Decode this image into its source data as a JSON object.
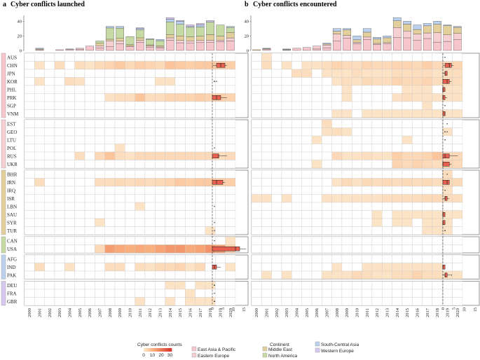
{
  "chart_data": {
    "type": "heatmap",
    "panels": [
      {
        "id": "a",
        "label": "a",
        "title": "Cyber conflicts launched"
      },
      {
        "id": "b",
        "label": "b",
        "title": "Cyber conflicts encountered"
      }
    ],
    "years": [
      "2000",
      "2001",
      "2002",
      "2003",
      "2004",
      "2005",
      "2006",
      "2007",
      "2008",
      "2009",
      "2010",
      "2011",
      "2012",
      "2013",
      "2014",
      "2015",
      "2016",
      "2017",
      "2018",
      "2019",
      "2020"
    ],
    "countries": [
      "AUS",
      "CHN",
      "JPN",
      "KOR",
      "PHL",
      "PRK",
      "SGP",
      "VNM",
      "EST",
      "GEO",
      "LTU",
      "POL",
      "RUS",
      "UKR",
      "BHR",
      "IRN",
      "IRQ",
      "ISR",
      "LBN",
      "SAU",
      "SYR",
      "TUR",
      "CAN",
      "USA",
      "AFG",
      "IND",
      "PAK",
      "DEU",
      "FRA",
      "GBR"
    ],
    "continent_of_country": [
      "East Asia & Pacific",
      "East Asia & Pacific",
      "East Asia & Pacific",
      "East Asia & Pacific",
      "East Asia & Pacific",
      "East Asia & Pacific",
      "East Asia & Pacific",
      "East Asia & Pacific",
      "Eastern Europe",
      "Eastern Europe",
      "Eastern Europe",
      "Eastern Europe",
      "Eastern Europe",
      "Eastern Europe",
      "Middle East",
      "Middle East",
      "Middle East",
      "Middle East",
      "Middle East",
      "Middle East",
      "Middle East",
      "Middle East",
      "North America",
      "North America",
      "South-Central Asia",
      "South-Central Asia",
      "South-Central Asia",
      "Western Europe",
      "Western Europe",
      "Western Europe"
    ],
    "continents": [
      {
        "name": "East Asia & Pacific",
        "color": "#f7c6cc"
      },
      {
        "name": "Eastern Europe",
        "color": "#f6cfd3"
      },
      {
        "name": "Middle East",
        "color": "#e3cf9c"
      },
      {
        "name": "North America",
        "color": "#c6dba4"
      },
      {
        "name": "South-Central Asia",
        "color": "#bcd1ee"
      },
      {
        "name": "Western Europe",
        "color": "#d7c8ef"
      }
    ],
    "launched": [
      [
        0,
        0,
        0,
        0,
        0,
        0,
        0,
        0,
        0,
        0,
        0,
        0,
        0,
        0,
        0,
        0,
        0,
        0,
        0,
        0,
        0
      ],
      [
        0,
        1,
        0,
        2,
        0,
        2,
        1,
        3,
        4,
        6,
        3,
        5,
        4,
        3,
        7,
        6,
        5,
        6,
        6,
        6,
        5
      ],
      [
        0,
        0,
        0,
        0,
        0,
        0,
        0,
        0,
        0,
        0,
        0,
        0,
        0,
        0,
        0,
        0,
        0,
        0,
        0,
        0,
        0
      ],
      [
        0,
        1,
        0,
        0,
        2,
        1,
        0,
        0,
        0,
        0,
        0,
        0,
        0,
        1,
        1,
        0,
        0,
        0,
        0,
        0,
        0
      ],
      [
        0,
        0,
        0,
        0,
        0,
        0,
        0,
        0,
        0,
        0,
        0,
        0,
        0,
        0,
        0,
        0,
        0,
        0,
        0,
        0,
        0
      ],
      [
        0,
        0,
        0,
        0,
        0,
        0,
        0,
        0,
        1,
        2,
        2,
        7,
        2,
        2,
        4,
        4,
        4,
        5,
        4,
        5,
        4
      ],
      [
        0,
        0,
        0,
        0,
        0,
        0,
        0,
        0,
        0,
        0,
        0,
        0,
        0,
        0,
        0,
        0,
        0,
        0,
        0,
        0,
        0
      ],
      [
        0,
        0,
        0,
        0,
        0,
        0,
        0,
        0,
        0,
        0,
        0,
        0,
        0,
        0,
        0,
        0,
        0,
        0,
        0,
        0,
        0
      ],
      [
        0,
        0,
        0,
        0,
        0,
        0,
        0,
        0,
        0,
        0,
        0,
        0,
        0,
        0,
        0,
        0,
        0,
        0,
        0,
        0,
        0
      ],
      [
        0,
        0,
        0,
        0,
        0,
        0,
        0,
        0,
        0,
        0,
        0,
        0,
        0,
        0,
        0,
        0,
        0,
        0,
        0,
        0,
        0
      ],
      [
        0,
        0,
        0,
        0,
        0,
        0,
        0,
        0,
        0,
        0,
        0,
        0,
        0,
        0,
        0,
        0,
        0,
        0,
        0,
        0,
        0
      ],
      [
        0,
        0,
        0,
        0,
        0,
        0,
        0,
        0,
        0,
        1,
        0,
        0,
        0,
        0,
        0,
        0,
        0,
        0,
        0,
        0,
        0
      ],
      [
        0,
        0,
        0,
        0,
        0,
        2,
        0,
        3,
        7,
        2,
        1,
        3,
        3,
        3,
        3,
        3,
        3,
        3,
        3,
        2,
        3
      ],
      [
        0,
        0,
        0,
        0,
        0,
        0,
        0,
        0,
        0,
        0,
        0,
        0,
        0,
        0,
        0,
        0,
        0,
        0,
        0,
        0,
        0
      ],
      [
        0,
        0,
        0,
        0,
        0,
        0,
        0,
        0,
        0,
        0,
        0,
        0,
        0,
        0,
        0,
        0,
        0,
        0,
        0,
        0,
        0
      ],
      [
        0,
        2,
        0,
        0,
        0,
        0,
        0,
        2,
        2,
        3,
        2,
        3,
        2,
        3,
        4,
        6,
        5,
        6,
        6,
        5,
        5
      ],
      [
        0,
        0,
        0,
        0,
        0,
        0,
        0,
        0,
        0,
        0,
        0,
        0,
        0,
        0,
        0,
        0,
        0,
        0,
        0,
        0,
        0
      ],
      [
        0,
        0,
        0,
        0,
        0,
        0,
        0,
        0,
        0,
        0,
        0,
        0,
        0,
        0,
        0,
        0,
        0,
        0,
        0,
        0,
        0
      ],
      [
        0,
        0,
        0,
        0,
        0,
        0,
        0,
        0,
        0,
        0,
        0,
        1,
        0,
        0,
        0,
        0,
        0,
        0,
        0,
        0,
        0
      ],
      [
        0,
        0,
        0,
        0,
        0,
        0,
        0,
        0,
        0,
        0,
        0,
        0,
        0,
        0,
        0,
        0,
        0,
        0,
        0,
        0,
        0
      ],
      [
        0,
        0,
        0,
        0,
        0,
        0,
        0,
        1,
        0,
        0,
        0,
        0,
        0,
        0,
        0,
        0,
        0,
        0,
        0,
        0,
        0
      ],
      [
        0,
        0,
        0,
        0,
        0,
        0,
        0,
        0,
        0,
        0,
        0,
        0,
        0,
        0,
        0,
        0,
        0,
        0,
        1,
        0,
        0
      ],
      [
        0,
        0,
        0,
        0,
        0,
        0,
        0,
        0,
        0,
        0,
        0,
        0,
        0,
        0,
        0,
        0,
        0,
        0,
        0,
        0,
        1
      ],
      [
        0,
        0,
        0,
        0,
        0,
        0,
        0,
        3,
        14,
        12,
        11,
        12,
        11,
        13,
        15,
        15,
        12,
        13,
        16,
        14,
        4
      ],
      [
        0,
        0,
        0,
        0,
        0,
        0,
        0,
        0,
        0,
        0,
        0,
        0,
        0,
        0,
        0,
        0,
        0,
        0,
        0,
        0,
        0
      ],
      [
        0,
        2,
        0,
        0,
        1,
        0,
        0,
        0,
        2,
        2,
        0,
        2,
        1,
        3,
        3,
        4,
        1,
        3,
        0,
        0,
        1
      ],
      [
        0,
        0,
        0,
        0,
        0,
        0,
        0,
        0,
        0,
        0,
        0,
        0,
        0,
        0,
        0,
        0,
        0,
        0,
        0,
        0,
        0
      ],
      [
        0,
        0,
        0,
        0,
        0,
        0,
        0,
        0,
        0,
        0,
        0,
        0,
        0,
        0,
        1,
        1,
        0,
        1,
        1,
        0,
        0
      ],
      [
        0,
        0,
        0,
        0,
        0,
        0,
        0,
        0,
        0,
        0,
        0,
        0,
        0,
        0,
        0,
        0,
        1,
        0,
        0,
        0,
        0
      ],
      [
        0,
        0,
        0,
        0,
        0,
        0,
        0,
        0,
        0,
        0,
        0,
        1,
        0,
        0,
        1,
        0,
        1,
        1,
        1,
        0,
        0
      ]
    ],
    "encountered": [
      [
        0,
        1,
        0,
        0,
        0,
        0,
        0,
        0,
        0,
        0,
        0,
        0,
        0,
        0,
        0,
        0,
        0,
        0,
        0,
        0,
        0
      ],
      [
        0,
        2,
        0,
        1,
        0,
        1,
        1,
        2,
        4,
        3,
        2,
        4,
        3,
        3,
        4,
        4,
        3,
        5,
        3,
        3,
        4
      ],
      [
        0,
        0,
        0,
        0,
        2,
        2,
        0,
        1,
        1,
        1,
        2,
        1,
        1,
        1,
        2,
        2,
        2,
        2,
        1,
        2,
        2
      ],
      [
        0,
        0,
        0,
        0,
        0,
        0,
        0,
        0,
        1,
        2,
        1,
        3,
        2,
        2,
        4,
        3,
        3,
        4,
        2,
        3,
        2
      ],
      [
        0,
        0,
        0,
        0,
        0,
        0,
        0,
        0,
        0,
        1,
        0,
        0,
        0,
        0,
        0,
        1,
        1,
        1,
        0,
        1,
        1
      ],
      [
        0,
        0,
        0,
        0,
        0,
        0,
        0,
        0,
        0,
        1,
        0,
        0,
        0,
        0,
        1,
        2,
        1,
        1,
        1,
        1,
        1
      ],
      [
        0,
        0,
        0,
        0,
        0,
        0,
        0,
        0,
        0,
        0,
        0,
        0,
        0,
        0,
        0,
        0,
        0,
        1,
        0,
        0,
        0
      ],
      [
        0,
        0,
        0,
        0,
        0,
        0,
        0,
        0,
        1,
        1,
        0,
        1,
        1,
        1,
        1,
        1,
        1,
        1,
        1,
        1,
        1
      ],
      [
        0,
        0,
        0,
        0,
        0,
        0,
        0,
        2,
        0,
        0,
        0,
        0,
        0,
        0,
        0,
        0,
        0,
        0,
        0,
        0,
        0
      ],
      [
        0,
        0,
        0,
        0,
        0,
        0,
        0,
        1,
        2,
        1,
        0,
        0,
        0,
        0,
        0,
        0,
        0,
        0,
        0,
        1,
        0
      ],
      [
        0,
        0,
        0,
        0,
        0,
        0,
        1,
        0,
        0,
        0,
        0,
        0,
        0,
        0,
        0,
        1,
        0,
        0,
        0,
        0,
        0
      ],
      [
        0,
        0,
        0,
        0,
        0,
        0,
        0,
        0,
        0,
        0,
        0,
        0,
        0,
        0,
        0,
        0,
        0,
        0,
        0,
        0,
        0
      ],
      [
        0,
        0,
        0,
        0,
        0,
        0,
        0,
        0,
        3,
        1,
        1,
        2,
        1,
        1,
        5,
        3,
        3,
        4,
        7,
        3,
        3
      ],
      [
        0,
        0,
        0,
        0,
        0,
        0,
        1,
        0,
        0,
        0,
        0,
        0,
        0,
        0,
        4,
        3,
        4,
        3,
        2,
        4,
        3
      ],
      [
        0,
        0,
        0,
        0,
        0,
        0,
        0,
        0,
        0,
        0,
        0,
        0,
        0,
        0,
        0,
        0,
        0,
        0,
        0,
        2,
        0
      ],
      [
        0,
        0,
        0,
        0,
        0,
        0,
        0,
        0,
        1,
        3,
        1,
        3,
        2,
        3,
        2,
        3,
        2,
        3,
        2,
        3,
        3
      ],
      [
        0,
        0,
        0,
        0,
        0,
        0,
        0,
        0,
        0,
        0,
        0,
        0,
        0,
        0,
        0,
        0,
        0,
        0,
        0,
        1,
        0
      ],
      [
        1,
        1,
        0,
        1,
        0,
        0,
        0,
        1,
        1,
        1,
        1,
        1,
        1,
        2,
        2,
        2,
        2,
        3,
        3,
        2,
        2
      ],
      [
        0,
        0,
        0,
        0,
        0,
        0,
        0,
        0,
        0,
        0,
        0,
        0,
        0,
        0,
        0,
        0,
        0,
        0,
        0,
        0,
        0
      ],
      [
        0,
        0,
        0,
        0,
        0,
        0,
        0,
        0,
        0,
        0,
        0,
        0,
        1,
        0,
        1,
        1,
        1,
        1,
        1,
        1,
        1
      ],
      [
        0,
        0,
        0,
        0,
        0,
        0,
        0,
        0,
        0,
        0,
        0,
        0,
        1,
        0,
        1,
        1,
        0,
        1,
        1,
        1,
        0
      ],
      [
        0,
        0,
        0,
        0,
        0,
        0,
        0,
        0,
        0,
        0,
        0,
        0,
        0,
        0,
        0,
        0,
        0,
        1,
        1,
        1,
        0
      ],
      [
        0,
        0,
        0,
        0,
        0,
        0,
        0,
        0,
        0,
        0,
        0,
        0,
        0,
        0,
        0,
        0,
        0,
        0,
        0,
        0,
        0
      ],
      [
        0,
        0,
        0,
        0,
        0,
        0,
        0,
        0,
        0,
        0,
        0,
        0,
        0,
        0,
        0,
        0,
        0,
        0,
        0,
        0,
        0
      ],
      [
        0,
        0,
        0,
        0,
        0,
        0,
        0,
        0,
        0,
        0,
        0,
        0,
        0,
        0,
        0,
        0,
        0,
        0,
        0,
        0,
        0
      ],
      [
        0,
        0,
        0,
        0,
        0,
        0,
        0,
        0,
        1,
        0,
        0,
        1,
        1,
        1,
        1,
        1,
        1,
        1,
        1,
        0,
        0
      ],
      [
        0,
        1,
        0,
        1,
        0,
        0,
        0,
        1,
        1,
        1,
        3,
        2,
        1,
        1,
        2,
        2,
        4,
        2,
        2,
        1,
        1
      ],
      [
        0,
        0,
        0,
        0,
        0,
        0,
        0,
        0,
        0,
        0,
        0,
        0,
        0,
        0,
        0,
        0,
        0,
        0,
        0,
        0,
        0
      ],
      [
        0,
        0,
        0,
        0,
        0,
        0,
        0,
        0,
        0,
        0,
        0,
        0,
        0,
        0,
        0,
        0,
        0,
        0,
        0,
        0,
        0
      ],
      [
        0,
        0,
        0,
        0,
        0,
        0,
        0,
        0,
        0,
        0,
        0,
        0,
        0,
        0,
        0,
        0,
        0,
        0,
        0,
        0,
        0
      ]
    ],
    "top_totals": {
      "launched": [
        0,
        3,
        0,
        1,
        2,
        3,
        6,
        13,
        33,
        33,
        19,
        31,
        16,
        15,
        45,
        41,
        35,
        37,
        41,
        35,
        33
      ],
      "encountered": [
        1,
        3,
        0,
        2,
        3,
        4,
        6,
        10,
        30,
        30,
        20,
        30,
        18,
        20,
        45,
        40,
        35,
        37,
        40,
        35,
        33
      ]
    },
    "top_ticks": [
      0,
      20,
      40
    ],
    "top_ylim": [
      0,
      48
    ],
    "box_ticks": [
      0,
      5,
      10,
      15
    ],
    "box_xlim": [
      0,
      16
    ],
    "legend": {
      "counts_title": "Cyber conflicts counts",
      "counts_ticks": [
        "0",
        "10",
        "20",
        "30"
      ],
      "counts_max": 32,
      "continent_title": "Continent"
    }
  }
}
